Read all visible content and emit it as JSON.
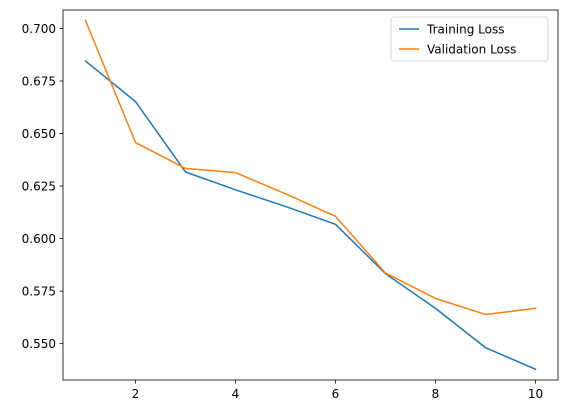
{
  "chart_data": {
    "type": "line",
    "title": "",
    "xlabel": "",
    "ylabel": "",
    "x": [
      1,
      2,
      3,
      4,
      5,
      6,
      7,
      8,
      9,
      10
    ],
    "xlim": [
      0.55,
      10.45
    ],
    "ylim": [
      0.5327,
      0.7088
    ],
    "xticks": [
      2,
      4,
      6,
      8,
      10
    ],
    "yticks": [
      0.55,
      0.575,
      0.6,
      0.625,
      0.65,
      0.675,
      0.7
    ],
    "ytick_labels": [
      "0.550",
      "0.575",
      "0.600",
      "0.625",
      "0.650",
      "0.675",
      "0.700"
    ],
    "grid": false,
    "legend_position": "top-right",
    "series": [
      {
        "name": "Training Loss",
        "color": "#1f77b4",
        "values": [
          0.6845,
          0.6652,
          0.6317,
          0.6232,
          0.6153,
          0.6068,
          0.5833,
          0.5668,
          0.5481,
          0.5378
        ]
      },
      {
        "name": "Validation Loss",
        "color": "#ff7f0e",
        "values": [
          0.7038,
          0.6457,
          0.6334,
          0.6314,
          0.6213,
          0.6106,
          0.5836,
          0.5715,
          0.5639,
          0.5668
        ]
      }
    ]
  }
}
